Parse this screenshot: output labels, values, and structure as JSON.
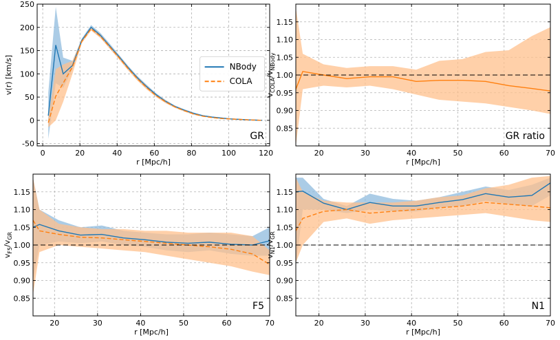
{
  "colors": {
    "nbody": "#1f77b4",
    "nbody_band": "#8fbbdd",
    "cola": "#ff7f0e",
    "cola_band": "#ffc08c",
    "grid": "#b0b0b0",
    "axis": "#000000"
  },
  "chart_data": [
    {
      "id": "gr",
      "type": "line",
      "panel_label": "GR",
      "xlabel": "r [Mpc/h]",
      "ylabel": "v(r) [km/s]",
      "xlim": [
        -3,
        122
      ],
      "ylim": [
        -55,
        250
      ],
      "xticks": [
        0,
        20,
        40,
        60,
        80,
        100,
        120
      ],
      "yticks": [
        -50,
        0,
        50,
        100,
        150,
        200,
        250
      ],
      "hline": null,
      "legend": {
        "position": "center-right",
        "entries": [
          "NBody",
          "COLA"
        ]
      },
      "series": [
        {
          "name": "NBody",
          "style": "solid",
          "color_key": "nbody",
          "band_key": "nbody_band",
          "x": [
            3,
            7,
            11,
            16,
            21,
            26,
            31,
            36,
            41,
            46,
            51,
            56,
            61,
            66,
            71,
            76,
            81,
            86,
            91,
            96,
            101,
            106,
            111,
            118
          ],
          "y": [
            10,
            162,
            100,
            118,
            172,
            200,
            183,
            160,
            137,
            113,
            91,
            72,
            55,
            41,
            30,
            22,
            15,
            10,
            7,
            5,
            3,
            2,
            1,
            0
          ],
          "band_low": [
            -40,
            80,
            70,
            110,
            168,
            195,
            178,
            155,
            133,
            109,
            87,
            68,
            52,
            38,
            28,
            20,
            13,
            9,
            6,
            4,
            2,
            1,
            0,
            -1
          ],
          "band_high": [
            60,
            244,
            135,
            128,
            176,
            205,
            188,
            165,
            141,
            117,
            95,
            76,
            58,
            44,
            32,
            24,
            17,
            11,
            8,
            6,
            4,
            3,
            2,
            1
          ]
        },
        {
          "name": "COLA",
          "style": "dashed",
          "color_key": "cola",
          "band_key": "cola_band",
          "x": [
            3,
            7,
            11,
            16,
            21,
            26,
            31,
            36,
            41,
            46,
            51,
            56,
            61,
            66,
            71,
            76,
            81,
            86,
            91,
            96,
            101,
            106,
            111,
            118
          ],
          "y": [
            -5,
            52,
            80,
            115,
            170,
            197,
            181,
            158,
            135,
            111,
            89,
            70,
            53,
            40,
            29,
            21,
            14,
            9,
            6,
            4,
            3,
            2,
            1,
            0
          ],
          "band_low": [
            -15,
            0,
            40,
            100,
            166,
            193,
            177,
            154,
            131,
            107,
            85,
            66,
            50,
            37,
            27,
            19,
            12,
            8,
            5,
            3,
            2,
            1,
            0,
            -1
          ],
          "band_high": [
            5,
            110,
            120,
            128,
            174,
            201,
            185,
            162,
            139,
            115,
            93,
            74,
            56,
            43,
            31,
            23,
            16,
            10,
            7,
            5,
            4,
            3,
            2,
            1
          ]
        }
      ]
    },
    {
      "id": "gr-ratio",
      "type": "line",
      "panel_label": "GR ratio",
      "xlabel": "r [Mpc/h]",
      "ylabel": "v_COLA/v_NBody",
      "ylabel_main": "v",
      "ylabel_sub": "COLA",
      "ylabel_mid": "/v",
      "ylabel_sub2": "NBody",
      "xlim": [
        15,
        70
      ],
      "ylim": [
        0.8,
        1.2
      ],
      "xticks": [
        20,
        30,
        40,
        50,
        60,
        70
      ],
      "yticks": [
        0.85,
        0.9,
        0.95,
        1.0,
        1.05,
        1.1,
        1.15
      ],
      "hline": 1.0,
      "legend": null,
      "series": [
        {
          "name": "COLA",
          "style": "solid",
          "color_key": "cola",
          "band_key": "cola_band",
          "x": [
            15,
            16.5,
            21,
            26,
            31,
            36,
            41,
            46,
            51,
            56,
            61,
            66,
            70
          ],
          "y": [
            0.96,
            1.01,
            1.0,
            0.99,
            0.995,
            0.995,
            0.982,
            0.985,
            0.985,
            0.982,
            0.97,
            0.962,
            0.955
          ],
          "band_low": [
            0.8,
            0.96,
            0.97,
            0.965,
            0.97,
            0.96,
            0.945,
            0.93,
            0.925,
            0.92,
            0.91,
            0.9,
            0.89
          ],
          "band_high": [
            1.19,
            1.06,
            1.03,
            1.02,
            1.025,
            1.025,
            1.015,
            1.04,
            1.045,
            1.065,
            1.07,
            1.11,
            1.135
          ]
        }
      ]
    },
    {
      "id": "f5",
      "type": "line",
      "panel_label": "F5",
      "xlabel": "r [Mpc/h]",
      "ylabel": "v_F5/v_GR",
      "ylabel_main": "v",
      "ylabel_sub": "F5",
      "ylabel_mid": "/v",
      "ylabel_sub2": "GR",
      "xlim": [
        15,
        70
      ],
      "ylim": [
        0.8,
        1.2
      ],
      "xticks": [
        20,
        30,
        40,
        50,
        60,
        70
      ],
      "yticks": [
        0.85,
        0.9,
        0.95,
        1.0,
        1.05,
        1.1,
        1.15
      ],
      "hline": 1.0,
      "legend": null,
      "series": [
        {
          "name": "NBody",
          "style": "solid",
          "color_key": "nbody",
          "band_key": "nbody_band",
          "x": [
            15,
            16.5,
            21,
            26,
            31,
            36,
            41,
            46,
            51,
            56,
            61,
            66,
            70
          ],
          "y": [
            1.05,
            1.058,
            1.04,
            1.028,
            1.03,
            1.02,
            1.015,
            1.008,
            1.005,
            1.008,
            1.002,
            1.0,
            1.012
          ],
          "band_low": [
            0.9,
            1.0,
            1.01,
            1.005,
            1.01,
            1.0,
            0.995,
            0.985,
            0.98,
            0.985,
            0.975,
            0.97,
            0.97
          ],
          "band_high": [
            1.19,
            1.1,
            1.07,
            1.05,
            1.055,
            1.04,
            1.035,
            1.03,
            1.03,
            1.035,
            1.03,
            1.025,
            1.05
          ]
        },
        {
          "name": "COLA",
          "style": "dashed",
          "color_key": "cola",
          "band_key": "cola_band",
          "x": [
            15,
            16.5,
            21,
            26,
            31,
            36,
            41,
            46,
            51,
            56,
            61,
            66,
            70
          ],
          "y": [
            1.07,
            1.04,
            1.03,
            1.022,
            1.02,
            1.015,
            1.01,
            1.005,
            1.0,
            0.995,
            0.988,
            0.975,
            0.945
          ],
          "band_low": [
            0.86,
            0.98,
            1.0,
            0.995,
            0.99,
            0.985,
            0.98,
            0.97,
            0.96,
            0.95,
            0.94,
            0.925,
            0.915
          ],
          "band_high": [
            1.19,
            1.1,
            1.06,
            1.05,
            1.045,
            1.045,
            1.04,
            1.04,
            1.035,
            1.035,
            1.035,
            1.025,
            0.985
          ]
        }
      ]
    },
    {
      "id": "n1",
      "type": "line",
      "panel_label": "N1",
      "xlabel": "r [Mpc/h]",
      "ylabel": "v_N1/v_GR",
      "ylabel_main": "v",
      "ylabel_sub": "N1",
      "ylabel_mid": "/v",
      "ylabel_sub2": "GR",
      "xlim": [
        15,
        70
      ],
      "ylim": [
        0.8,
        1.2
      ],
      "xticks": [
        20,
        30,
        40,
        50,
        60,
        70
      ],
      "yticks": [
        0.85,
        0.9,
        0.95,
        1.0,
        1.05,
        1.1,
        1.15
      ],
      "hline": 1.0,
      "legend": null,
      "series": [
        {
          "name": "NBody",
          "style": "solid",
          "color_key": "nbody",
          "band_key": "nbody_band",
          "x": [
            15,
            16.5,
            21,
            26,
            31,
            36,
            41,
            46,
            51,
            56,
            61,
            66,
            70
          ],
          "y": [
            1.15,
            1.152,
            1.118,
            1.1,
            1.12,
            1.11,
            1.11,
            1.12,
            1.128,
            1.145,
            1.135,
            1.14,
            1.175
          ],
          "band_low": [
            0.94,
            1.1,
            1.1,
            1.09,
            1.1,
            1.095,
            1.095,
            1.105,
            1.11,
            1.125,
            1.115,
            1.11,
            1.14
          ],
          "band_high": [
            1.19,
            1.19,
            1.13,
            1.11,
            1.145,
            1.13,
            1.125,
            1.135,
            1.15,
            1.165,
            1.155,
            1.17,
            1.19
          ]
        },
        {
          "name": "COLA",
          "style": "dashed",
          "color_key": "cola",
          "band_key": "cola_band",
          "x": [
            15,
            16.5,
            21,
            26,
            31,
            36,
            41,
            46,
            51,
            56,
            61,
            66,
            70
          ],
          "y": [
            1.04,
            1.075,
            1.095,
            1.1,
            1.09,
            1.095,
            1.1,
            1.105,
            1.11,
            1.12,
            1.115,
            1.11,
            1.105
          ],
          "band_low": [
            0.95,
            1.0,
            1.065,
            1.075,
            1.06,
            1.07,
            1.075,
            1.08,
            1.085,
            1.09,
            1.08,
            1.07,
            1.065
          ],
          "band_high": [
            1.19,
            1.15,
            1.125,
            1.12,
            1.12,
            1.12,
            1.125,
            1.135,
            1.14,
            1.16,
            1.17,
            1.19,
            1.195
          ]
        }
      ]
    }
  ]
}
